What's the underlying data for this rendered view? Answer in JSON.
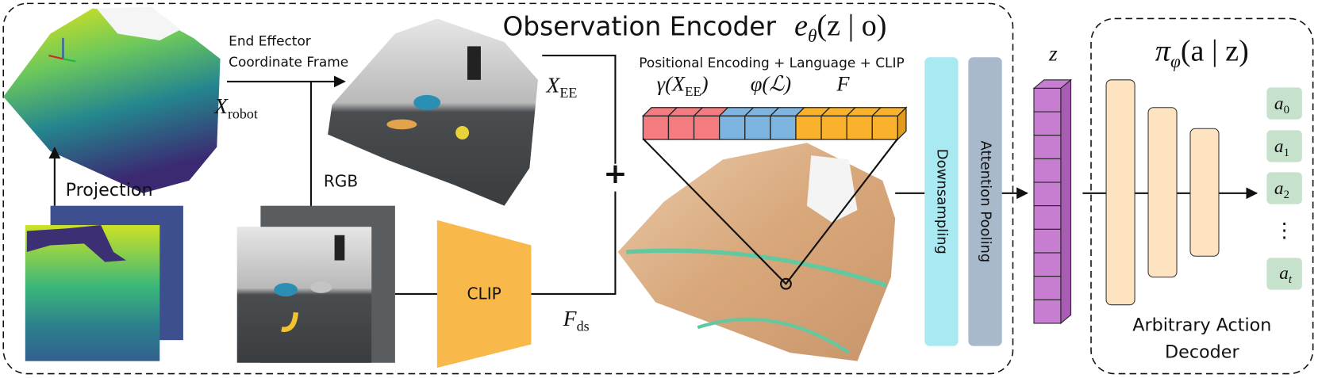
{
  "title": {
    "text": "Observation Encoder",
    "symbol": "e",
    "subscript": "θ",
    "argument": "(z | o)"
  },
  "labels": {
    "end_effector": [
      "End Effector",
      "Coordinate Frame"
    ],
    "x_robot": {
      "symbol": "X",
      "subscript": "robot"
    },
    "projection": "Projection",
    "rgb": "RGB",
    "x_ee": {
      "symbol": "X",
      "subscript": "EE"
    },
    "plus": "+",
    "f_ds": {
      "symbol": "F",
      "subscript": "ds"
    }
  },
  "clip": "CLIP",
  "features": {
    "caption": "Positional Encoding + Language + CLIP",
    "positional": {
      "symbol": "γ(X",
      "subscript": "EE",
      "close": ")"
    },
    "language": "φ(ℒ)",
    "clip": "F"
  },
  "blocks": [
    "Downsampling",
    "Attention Pooling"
  ],
  "latent": "z",
  "policy": {
    "symbol": "π",
    "subscript": "φ",
    "argument": "(a | z)"
  },
  "actions": [
    {
      "symbol": "a",
      "subscript": "0"
    },
    {
      "symbol": "a",
      "subscript": "1"
    },
    {
      "symbol": "a",
      "subscript": "2"
    }
  ],
  "ellipsis": "⋮",
  "last_action": {
    "symbol": "a",
    "subscript": "t"
  },
  "decoder": [
    "Arbitrary Action",
    "Decoder"
  ]
}
